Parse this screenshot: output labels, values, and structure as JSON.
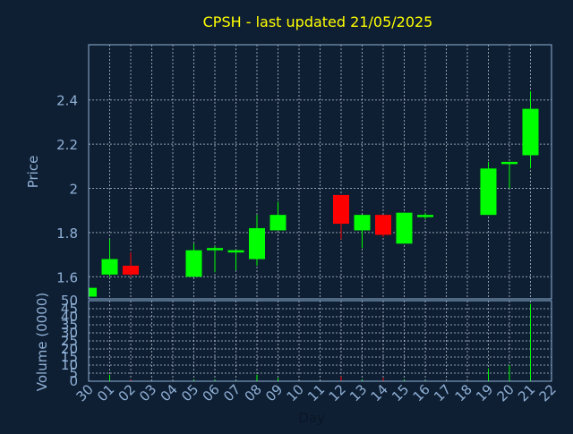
{
  "colors": {
    "background": "#0f1f33",
    "axis": "#8fb0d6",
    "grid": "#c8d4e0",
    "title": "#ffff00",
    "up": "#00ff00",
    "down": "#ff0000",
    "text": "#8fb0d6"
  },
  "chart_data": {
    "type": "candlestick",
    "title": "CPSH - last updated 21/05/2025",
    "xlabel": "Day",
    "ylabel": "Price",
    "volume_label": "Volume (0000)",
    "grid": true,
    "x_ticks": [
      "30",
      "01",
      "02",
      "03",
      "04",
      "05",
      "06",
      "07",
      "08",
      "09",
      "10",
      "11",
      "12",
      "13",
      "14",
      "15",
      "16",
      "17",
      "18",
      "19",
      "20",
      "21",
      "22"
    ],
    "price_ticks": [
      "1.6",
      "1.8",
      "2",
      "2.2",
      "2.4"
    ],
    "price_ylim": [
      1.5,
      2.65
    ],
    "volume_ticks": [
      "0",
      "5",
      "10",
      "15",
      "20",
      "25",
      "30",
      "35",
      "40",
      "45",
      "50"
    ],
    "volume_ylim": [
      0,
      50
    ],
    "candles": [
      {
        "day": "30",
        "open": 1.51,
        "close": 1.55,
        "high": 1.55,
        "low": 1.51,
        "volume": 0.5
      },
      {
        "day": "01",
        "open": 1.61,
        "close": 1.68,
        "high": 1.77,
        "low": 1.6,
        "volume": 4
      },
      {
        "day": "02",
        "open": 1.65,
        "close": 1.61,
        "high": 1.71,
        "low": 1.6,
        "volume": 1
      },
      {
        "day": "05",
        "open": 1.6,
        "close": 1.72,
        "high": 1.75,
        "low": 1.6,
        "volume": 1
      },
      {
        "day": "06",
        "open": 1.72,
        "close": 1.73,
        "high": 1.74,
        "low": 1.62,
        "volume": 1
      },
      {
        "day": "07",
        "open": 1.71,
        "close": 1.72,
        "high": 1.72,
        "low": 1.63,
        "volume": 0.5
      },
      {
        "day": "08",
        "open": 1.68,
        "close": 1.82,
        "high": 1.88,
        "low": 1.65,
        "volume": 4
      },
      {
        "day": "09",
        "open": 1.81,
        "close": 1.88,
        "high": 1.94,
        "low": 1.81,
        "volume": 2
      },
      {
        "day": "12",
        "open": 1.97,
        "close": 1.84,
        "high": 1.97,
        "low": 1.77,
        "volume": 3
      },
      {
        "day": "13",
        "open": 1.81,
        "close": 1.88,
        "high": 1.88,
        "low": 1.73,
        "volume": 1
      },
      {
        "day": "14",
        "open": 1.88,
        "close": 1.79,
        "high": 1.88,
        "low": 1.78,
        "volume": 2
      },
      {
        "day": "15",
        "open": 1.75,
        "close": 1.89,
        "high": 1.89,
        "low": 1.75,
        "volume": 1
      },
      {
        "day": "16",
        "open": 1.87,
        "close": 1.88,
        "high": 1.89,
        "low": 1.86,
        "volume": 0.5
      },
      {
        "day": "19",
        "open": 1.88,
        "close": 2.09,
        "high": 2.12,
        "low": 1.88,
        "volume": 8
      },
      {
        "day": "20",
        "open": 2.11,
        "close": 2.12,
        "high": 2.12,
        "low": 2.0,
        "volume": 10
      },
      {
        "day": "21",
        "open": 2.15,
        "close": 2.36,
        "high": 2.44,
        "low": 2.09,
        "volume": 48
      }
    ]
  }
}
